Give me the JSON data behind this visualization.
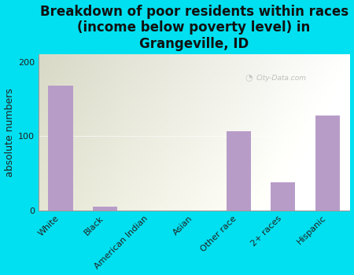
{
  "title": "Breakdown of poor residents within races\n(income below poverty level) in\nGrangeville, ID",
  "categories": [
    "White",
    "Black",
    "American Indian",
    "Asian",
    "Other race",
    "2+ races",
    "Hispanic"
  ],
  "values": [
    168,
    5,
    0,
    0,
    107,
    38,
    128
  ],
  "bar_color": "#b89cc8",
  "ylabel": "absolute numbers",
  "ylim": [
    0,
    210
  ],
  "yticks": [
    0,
    100,
    200
  ],
  "background_outer": "#00e0f0",
  "title_fontsize": 12,
  "ylabel_fontsize": 9,
  "tick_fontsize": 8,
  "watermark": "City-Data.com"
}
